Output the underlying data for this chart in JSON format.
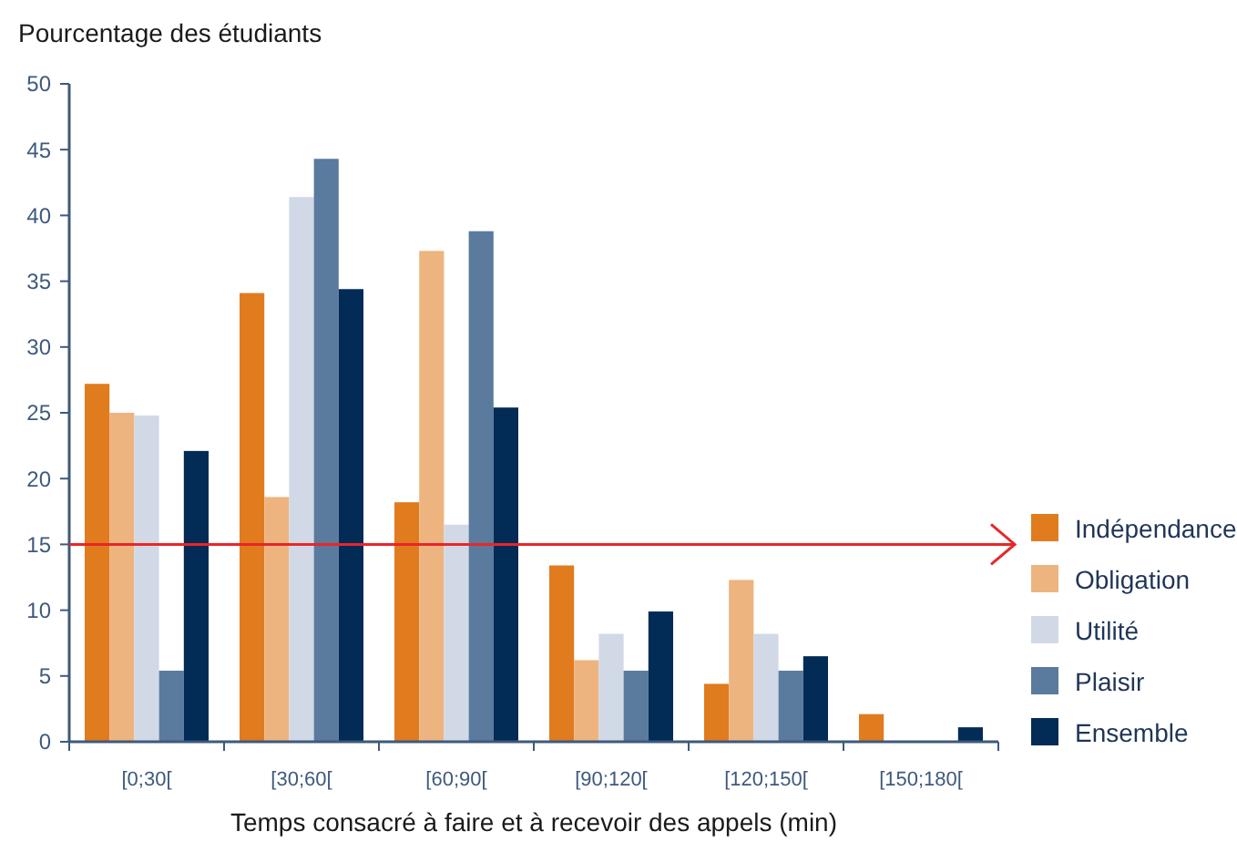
{
  "chart_data": {
    "type": "bar",
    "ylabel": "Pourcentage des étudiants",
    "xlabel": "Temps consacré à faire et à recevoir des appels (min)",
    "categories": [
      "[0;30[",
      "[30;60[",
      "[60;90[",
      "[90;120[",
      "[120;150[",
      "[150;180["
    ],
    "series": [
      {
        "name": "Indépendance",
        "color": "#e07b1e",
        "values": [
          27.2,
          34.1,
          18.2,
          13.4,
          4.4,
          2.1
        ]
      },
      {
        "name": "Obligation",
        "color": "#edb47f",
        "values": [
          25,
          18.6,
          37.3,
          6.2,
          12.3,
          0
        ]
      },
      {
        "name": "Utilité",
        "color": "#d1d9e6",
        "values": [
          24.8,
          41.4,
          16.5,
          8.2,
          8.2,
          0
        ]
      },
      {
        "name": "Plaisir",
        "color": "#5a7a9e",
        "values": [
          5.4,
          44.3,
          38.8,
          5.4,
          5.4,
          0
        ]
      },
      {
        "name": "Ensemble",
        "color": "#022b55",
        "values": [
          22.1,
          34.4,
          25.4,
          9.9,
          6.5,
          1.1
        ]
      }
    ],
    "ylim": [
      0,
      50
    ],
    "yticks": [
      0,
      5,
      10,
      15,
      20,
      25,
      30,
      35,
      40,
      45,
      50
    ],
    "grid": false,
    "legend": "right",
    "ref_lines": [
      {
        "axis": "y",
        "value": 15,
        "color": "#e8262a"
      }
    ]
  }
}
